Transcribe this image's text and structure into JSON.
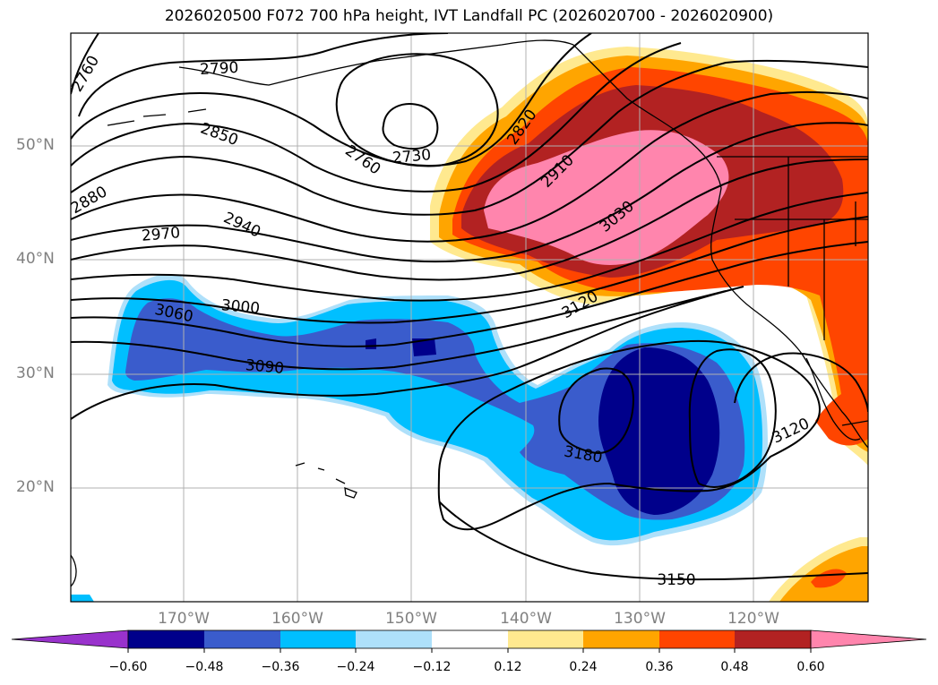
{
  "title": "2026020500 F072 700 hPa height, IVT Landfall PC (2026020700 - 2026020900)",
  "lat_labels": [
    "50°N",
    "40°N",
    "30°N",
    "20°N"
  ],
  "lon_labels": [
    "170°W",
    "160°W",
    "150°W",
    "140°W",
    "130°W",
    "120°W"
  ],
  "contour_labels": [
    "2760",
    "2790",
    "2850",
    "2880",
    "2970",
    "2940",
    "2760",
    "2730",
    "2820",
    "2910",
    "3030",
    "3060",
    "3000",
    "3090",
    "3120",
    "3180",
    "3120",
    "3150"
  ],
  "colorbar": {
    "ticks": [
      "−0.60",
      "−0.48",
      "−0.36",
      "−0.24",
      "−0.12",
      "0.12",
      "0.24",
      "0.36",
      "0.48",
      "0.60"
    ],
    "colors": [
      "#9932cc",
      "#00008b",
      "#3a5ccc",
      "#00bfff",
      "#aee0fa",
      "#ffffff",
      "#ffe98f",
      "#ffa500",
      "#ff4500",
      "#b22222",
      "#ff85ad"
    ]
  },
  "colors": {
    "land": "#ffffff",
    "ocean": "#ffffff",
    "grid": "#b0b0b0",
    "contour": "#000000"
  }
}
